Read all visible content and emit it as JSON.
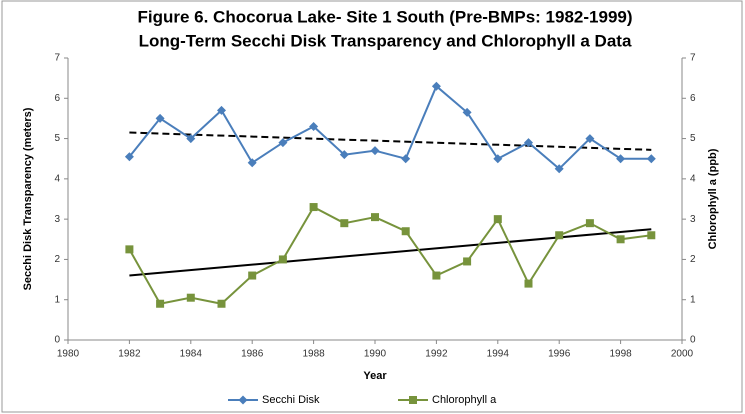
{
  "chart_data": {
    "type": "line",
    "title": [
      "Figure 6. Chocorua Lake- Site 1 South  (Pre-BMPs: 1982-1999)",
      "Long-Term Secchi Disk Transparency and Chlorophyll a Data"
    ],
    "x_label": "Year",
    "y_label": "Secchi Disk Transparency (meters)",
    "y2_label": "Chlorophyll a (ppb)",
    "x": [
      1982,
      1983,
      1984,
      1985,
      1986,
      1987,
      1988,
      1989,
      1990,
      1991,
      1992,
      1993,
      1994,
      1995,
      1996,
      1997,
      1998,
      1999
    ],
    "series": [
      {
        "name": "Secchi Disk",
        "color": "#4a7ebb",
        "marker": "diamond",
        "axis": "y",
        "values": [
          4.55,
          5.5,
          5.0,
          5.7,
          4.4,
          4.9,
          5.3,
          4.6,
          4.7,
          4.5,
          6.3,
          5.65,
          4.5,
          4.9,
          4.25,
          5.0,
          4.5,
          4.5
        ]
      },
      {
        "name": "Chlorophyll a",
        "color": "#77933c",
        "marker": "square",
        "axis": "y2",
        "values": [
          2.25,
          0.9,
          1.05,
          0.9,
          1.6,
          2.0,
          3.3,
          2.9,
          3.05,
          2.7,
          1.6,
          1.95,
          3.0,
          1.4,
          2.6,
          2.9,
          2.5,
          2.6
        ]
      }
    ],
    "trendlines": [
      {
        "axis": "y",
        "dashed": true,
        "color": "#000000",
        "x": [
          1982,
          1999
        ],
        "values": [
          5.15,
          4.72
        ]
      },
      {
        "axis": "y2",
        "dashed": false,
        "color": "#000000",
        "x": [
          1982,
          1999
        ],
        "values": [
          1.6,
          2.75
        ]
      }
    ],
    "xlim": [
      1980,
      2000
    ],
    "xticks": [
      1980,
      1982,
      1984,
      1986,
      1988,
      1990,
      1992,
      1994,
      1996,
      1998,
      2000
    ],
    "ylim": [
      0,
      7
    ],
    "yticks": [
      0,
      1,
      2,
      3,
      4,
      5,
      6,
      7
    ],
    "y2lim": [
      0,
      7
    ],
    "y2ticks": [
      0,
      1,
      2,
      3,
      4,
      5,
      6,
      7
    ],
    "grid": false,
    "legend": "bottom"
  }
}
